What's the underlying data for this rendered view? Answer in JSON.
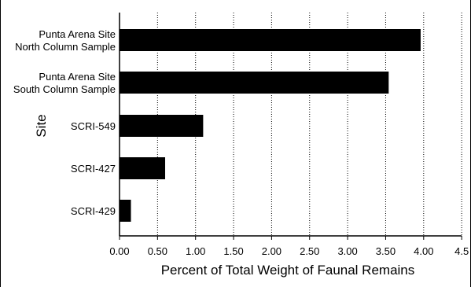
{
  "chart_data": {
    "type": "bar",
    "orientation": "horizontal",
    "title": "",
    "xlabel": "Percent of Total Weight of Faunal Remains",
    "ylabel": "Site",
    "xlim": [
      0,
      4.5
    ],
    "x_ticks": [
      "0.00",
      "0.50",
      "1.00",
      "1.50",
      "2.00",
      "2.50",
      "3.00",
      "3.50",
      "4.00",
      "4.5"
    ],
    "grid": "vertical dotted",
    "legend": "none",
    "bar_color": "#000000",
    "categories": [
      [
        "Punta Arena Site",
        "North Column Sample"
      ],
      [
        "Punta Arena Site",
        "South Column Sample"
      ],
      [
        "SCRI-549"
      ],
      [
        "SCRI-427"
      ],
      [
        "SCRI-429"
      ]
    ],
    "values": [
      3.96,
      3.54,
      1.1,
      0.6,
      0.15
    ]
  }
}
